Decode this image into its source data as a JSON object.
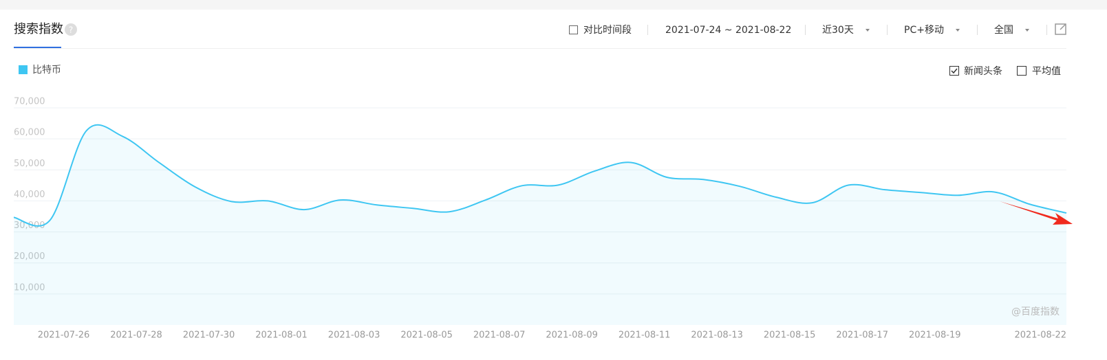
{
  "ui": {
    "title": "搜索指数",
    "help": "?",
    "compare": "对比时间段",
    "range": "2021-07-24 ~ 2021-08-22",
    "period": "近30天",
    "device": "PC+移动",
    "region": "全国",
    "news": "新闻头条",
    "average": "平均值",
    "watermark": "@百度指数"
  },
  "chart_data": {
    "type": "line",
    "categories": [
      null,
      null,
      "2021-07-26",
      null,
      "2021-07-28",
      null,
      "2021-07-30",
      null,
      "2021-08-01",
      null,
      "2021-08-03",
      null,
      "2021-08-05",
      null,
      "2021-08-07",
      null,
      "2021-08-09",
      null,
      "2021-08-11",
      null,
      "2021-08-13",
      null,
      "2021-08-15",
      null,
      "2021-08-17",
      null,
      "2021-08-19",
      null,
      null,
      "2021-08-22"
    ],
    "series": [
      {
        "name": "比特币",
        "color": "#3ec6f2",
        "values": [
          34700,
          33800,
          62600,
          60800,
          52400,
          44500,
          39800,
          40000,
          37200,
          40300,
          38700,
          37600,
          36500,
          40300,
          44900,
          45100,
          49600,
          52400,
          47600,
          46900,
          44700,
          41200,
          39400,
          45100,
          43600,
          42700,
          41800,
          42900,
          38900,
          36100
        ]
      }
    ],
    "ylim": [
      0,
      70000
    ],
    "yticks": [
      {
        "value": 10000,
        "label": "10,000"
      },
      {
        "value": 20000,
        "label": "20,000"
      },
      {
        "value": 30000,
        "label": "30,000"
      },
      {
        "value": 40000,
        "label": "40,000"
      },
      {
        "value": 50000,
        "label": "50,000"
      },
      {
        "value": 60000,
        "label": "60,000"
      },
      {
        "value": 70000,
        "label": "70,000"
      }
    ],
    "grid": true
  }
}
